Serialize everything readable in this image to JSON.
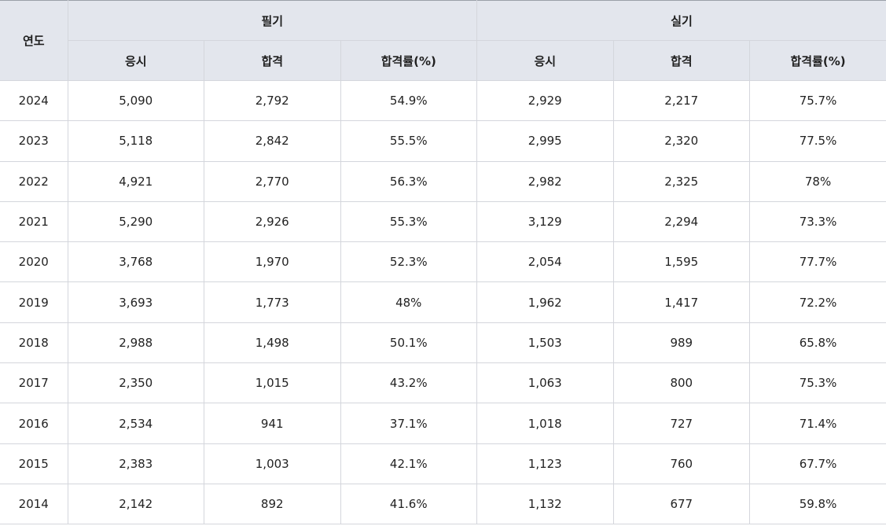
{
  "table": {
    "header": {
      "year": "연도",
      "groups": [
        "필기",
        "실기"
      ],
      "subcolumns": [
        "응시",
        "합격",
        "합격률(%)",
        "응시",
        "합격",
        "합격률(%)"
      ]
    },
    "rows": [
      [
        "2024",
        "5,090",
        "2,792",
        "54.9%",
        "2,929",
        "2,217",
        "75.7%"
      ],
      [
        "2023",
        "5,118",
        "2,842",
        "55.5%",
        "2,995",
        "2,320",
        "77.5%"
      ],
      [
        "2022",
        "4,921",
        "2,770",
        "56.3%",
        "2,982",
        "2,325",
        "78%"
      ],
      [
        "2021",
        "5,290",
        "2,926",
        "55.3%",
        "3,129",
        "2,294",
        "73.3%"
      ],
      [
        "2020",
        "3,768",
        "1,970",
        "52.3%",
        "2,054",
        "1,595",
        "77.7%"
      ],
      [
        "2019",
        "3,693",
        "1,773",
        "48%",
        "1,962",
        "1,417",
        "72.2%"
      ],
      [
        "2018",
        "2,988",
        "1,498",
        "50.1%",
        "1,503",
        "989",
        "65.8%"
      ],
      [
        "2017",
        "2,350",
        "1,015",
        "43.2%",
        "1,063",
        "800",
        "75.3%"
      ],
      [
        "2016",
        "2,534",
        "941",
        "37.1%",
        "1,018",
        "727",
        "71.4%"
      ],
      [
        "2015",
        "2,383",
        "1,003",
        "42.1%",
        "1,123",
        "760",
        "67.7%"
      ],
      [
        "2014",
        "2,142",
        "892",
        "41.6%",
        "1,132",
        "677",
        "59.8%"
      ]
    ]
  },
  "colors": {
    "header_bg": "#e3e6ed",
    "border": "#d4d6dc",
    "text": "#222222"
  }
}
